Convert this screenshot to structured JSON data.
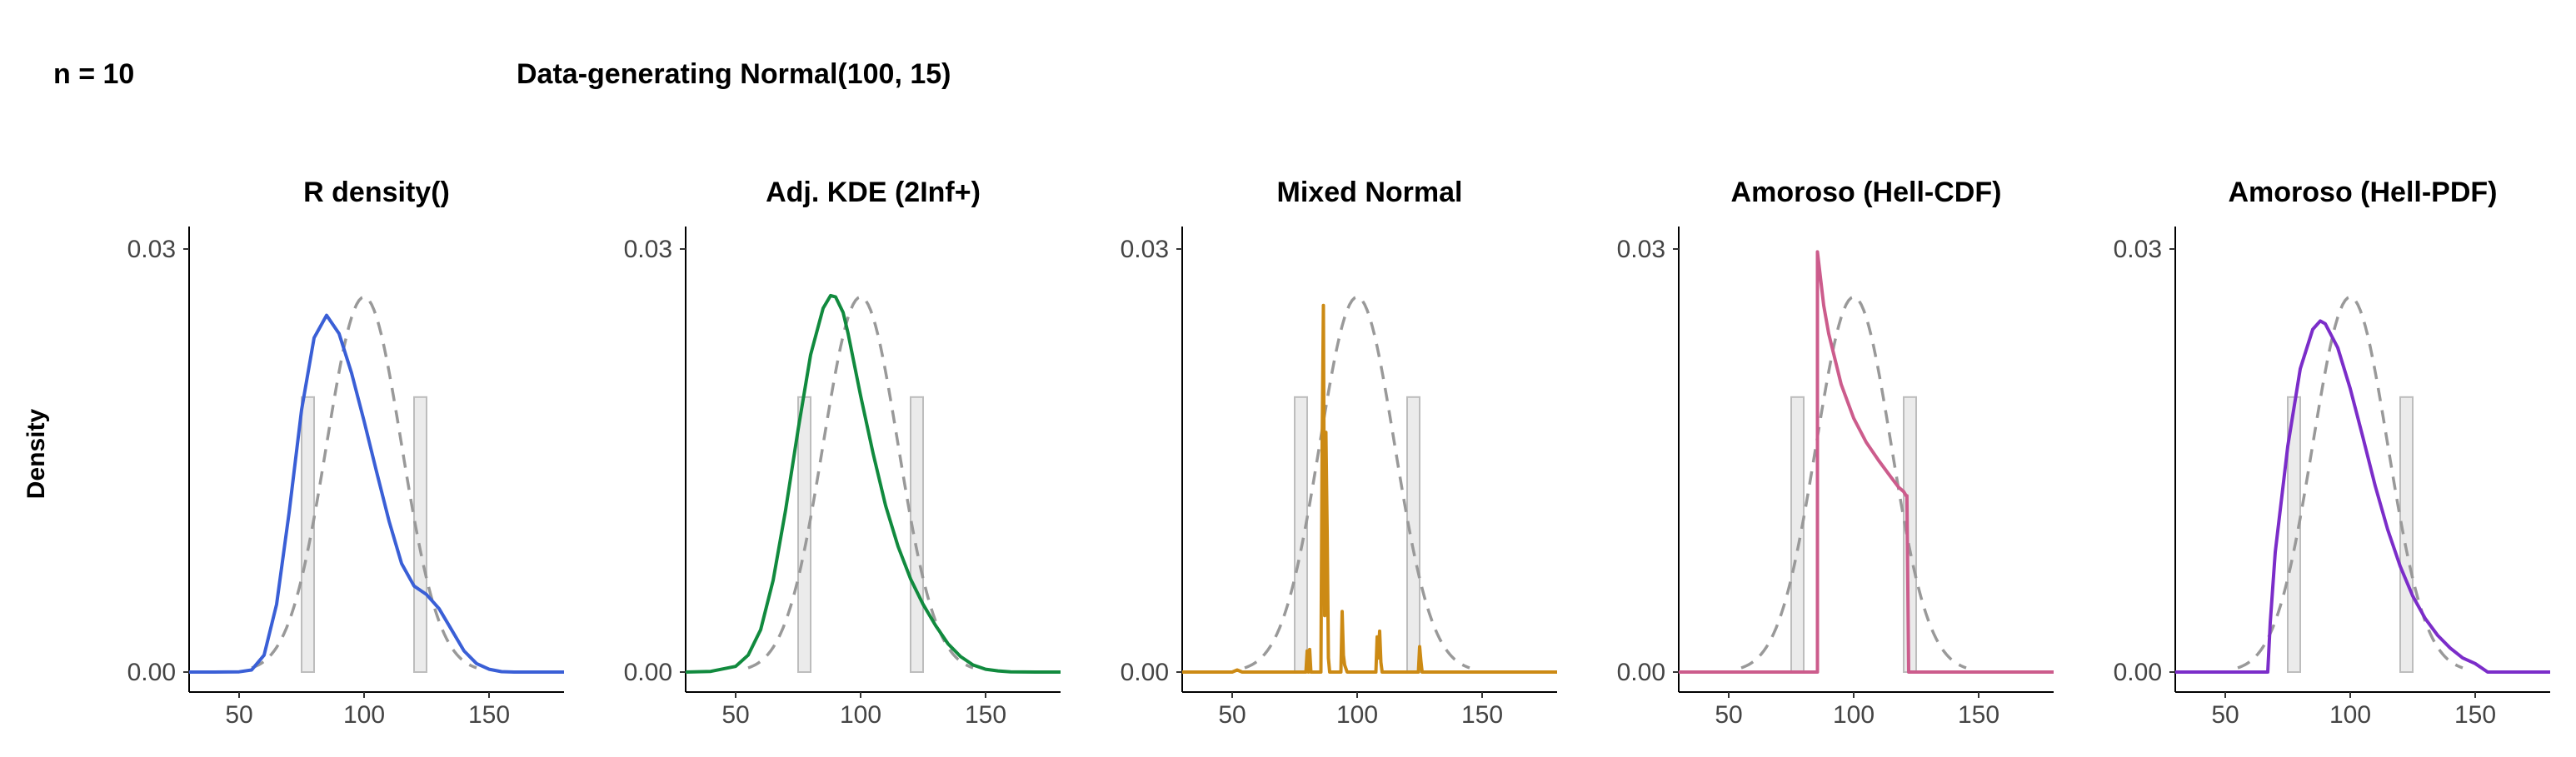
{
  "header": {
    "sample_size": "n = 10",
    "title": "Data-generating Normal(100, 15)",
    "ylabel": "Density"
  },
  "colors": {
    "reference": "#999999",
    "histogram_fill": "#ebebeb",
    "histogram_stroke": "#bdbdbd",
    "axis": "#000000"
  },
  "chart_data": [
    {
      "type": "line",
      "title": "R density()",
      "color": "#3a5fd6",
      "x_ticks": [
        50,
        100,
        150
      ],
      "y_ticks": [
        "0.03",
        "0.00"
      ],
      "xlim": [
        30,
        180
      ],
      "ylim": [
        0,
        0.03
      ],
      "x": [
        30,
        40,
        50,
        55,
        60,
        65,
        70,
        75,
        80,
        85,
        90,
        95,
        100,
        105,
        110,
        115,
        120,
        125,
        130,
        135,
        140,
        145,
        150,
        155,
        160,
        170,
        180
      ],
      "y": [
        0,
        0,
        2e-05,
        0.00015,
        0.0012,
        0.0048,
        0.0113,
        0.0186,
        0.0237,
        0.0253,
        0.024,
        0.0212,
        0.0178,
        0.0142,
        0.0107,
        0.0077,
        0.0061,
        0.0055,
        0.0045,
        0.003,
        0.0015,
        0.0006,
        0.0002,
        3e-05,
        0,
        0,
        0
      ],
      "reference_density": {
        "name": "Normal(100, 15)",
        "mean": 100,
        "sd": 15
      },
      "histogram": [
        {
          "x0": 75,
          "x1": 80,
          "y": 0.0195
        },
        {
          "x0": 120,
          "x1": 125,
          "y": 0.0195
        }
      ]
    },
    {
      "type": "line",
      "title": "Adj. KDE (2Inf+)",
      "color": "#118a3e",
      "x_ticks": [
        50,
        100,
        150
      ],
      "y_ticks": [
        "0.03",
        "0.00"
      ],
      "xlim": [
        30,
        180
      ],
      "ylim": [
        0,
        0.03
      ],
      "x": [
        30,
        40,
        50,
        55,
        60,
        65,
        70,
        75,
        80,
        85,
        88,
        90,
        93,
        95,
        100,
        105,
        110,
        115,
        120,
        125,
        130,
        135,
        140,
        145,
        150,
        155,
        160,
        170,
        180
      ],
      "y": [
        0,
        5e-05,
        0.0004,
        0.0012,
        0.003,
        0.0065,
        0.0115,
        0.0172,
        0.0225,
        0.0258,
        0.0267,
        0.0266,
        0.0255,
        0.024,
        0.0196,
        0.0155,
        0.0118,
        0.0089,
        0.0066,
        0.0048,
        0.0033,
        0.002,
        0.0011,
        0.0005,
        0.0002,
        8e-05,
        2e-05,
        0,
        0
      ],
      "reference_density": {
        "name": "Normal(100, 15)",
        "mean": 100,
        "sd": 15
      },
      "histogram": [
        {
          "x0": 75,
          "x1": 80,
          "y": 0.0195
        },
        {
          "x0": 120,
          "x1": 125,
          "y": 0.0195
        }
      ]
    },
    {
      "type": "line",
      "title": "Mixed Normal",
      "color": "#cc8a14",
      "x_ticks": [
        50,
        100,
        150
      ],
      "y_ticks": [
        "0.03",
        "0.00"
      ],
      "xlim": [
        30,
        180
      ],
      "ylim": [
        0,
        0.03
      ],
      "x": [
        30,
        50,
        52,
        54,
        70,
        79.5,
        80,
        80.5,
        81,
        81.5,
        82,
        84,
        85.5,
        86,
        86.5,
        87,
        87.5,
        88,
        88.5,
        89,
        90,
        93.5,
        94,
        94.5,
        95,
        96,
        107.5,
        108,
        108.5,
        109,
        109.5,
        110,
        124.5,
        125,
        125.5,
        126,
        155,
        180
      ],
      "y": [
        0,
        0,
        0.00015,
        0,
        0,
        0,
        0.0015,
        0,
        0.0016,
        0,
        0,
        0,
        0,
        0.0163,
        0.026,
        0.004,
        0.017,
        0.01,
        0.001,
        0,
        0,
        0,
        0.0043,
        0.0012,
        0.0005,
        0,
        0,
        0.0025,
        0.001,
        0.0029,
        0.0007,
        0,
        0,
        0.0018,
        0.0008,
        0,
        0,
        0
      ],
      "reference_density": {
        "name": "Normal(100, 15)",
        "mean": 100,
        "sd": 15
      },
      "histogram": [
        {
          "x0": 75,
          "x1": 80,
          "y": 0.0195
        },
        {
          "x0": 120,
          "x1": 125,
          "y": 0.0195
        }
      ]
    },
    {
      "type": "line",
      "title": "Amoroso (Hell-CDF)",
      "color": "#cc5c8c",
      "x_ticks": [
        50,
        100,
        150
      ],
      "y_ticks": [
        "0.03",
        "0.00"
      ],
      "xlim": [
        30,
        180
      ],
      "ylim": [
        0,
        0.03
      ],
      "x": [
        30,
        50,
        70,
        85.5,
        85.5,
        88,
        90,
        95,
        100,
        105,
        110,
        115,
        118,
        120,
        121,
        121.3,
        122,
        125,
        150,
        180
      ],
      "y": [
        0,
        0,
        0,
        0,
        0.0298,
        0.026,
        0.024,
        0.0204,
        0.018,
        0.0163,
        0.015,
        0.0138,
        0.0131,
        0.0128,
        0.0125,
        0.0125,
        0,
        0,
        0,
        0
      ],
      "reference_density": {
        "name": "Normal(100, 15)",
        "mean": 100,
        "sd": 15
      },
      "histogram": [
        {
          "x0": 75,
          "x1": 80,
          "y": 0.0195
        },
        {
          "x0": 120,
          "x1": 125,
          "y": 0.0195
        }
      ]
    },
    {
      "type": "line",
      "title": "Amoroso (Hell-PDF)",
      "color": "#7b2dc9",
      "x_ticks": [
        50,
        100,
        150
      ],
      "y_ticks": [
        "0.03",
        "0.00"
      ],
      "xlim": [
        30,
        180
      ],
      "ylim": [
        0,
        0.03
      ],
      "x": [
        30,
        50,
        60,
        67,
        68,
        70,
        75,
        80,
        85,
        88,
        90,
        95,
        100,
        105,
        110,
        115,
        120,
        125,
        130,
        135,
        140,
        145,
        150,
        155,
        160,
        170,
        180
      ],
      "y": [
        0,
        0,
        0,
        0,
        0.0035,
        0.0085,
        0.016,
        0.0215,
        0.0243,
        0.0249,
        0.0247,
        0.023,
        0.0201,
        0.0167,
        0.0132,
        0.0101,
        0.0075,
        0.0054,
        0.0038,
        0.0026,
        0.0017,
        0.001,
        0.0006,
        0,
        0,
        0,
        0
      ],
      "reference_density": {
        "name": "Normal(100, 15)",
        "mean": 100,
        "sd": 15
      },
      "histogram": [
        {
          "x0": 75,
          "x1": 80,
          "y": 0.0195
        },
        {
          "x0": 120,
          "x1": 125,
          "y": 0.0195
        }
      ]
    }
  ]
}
